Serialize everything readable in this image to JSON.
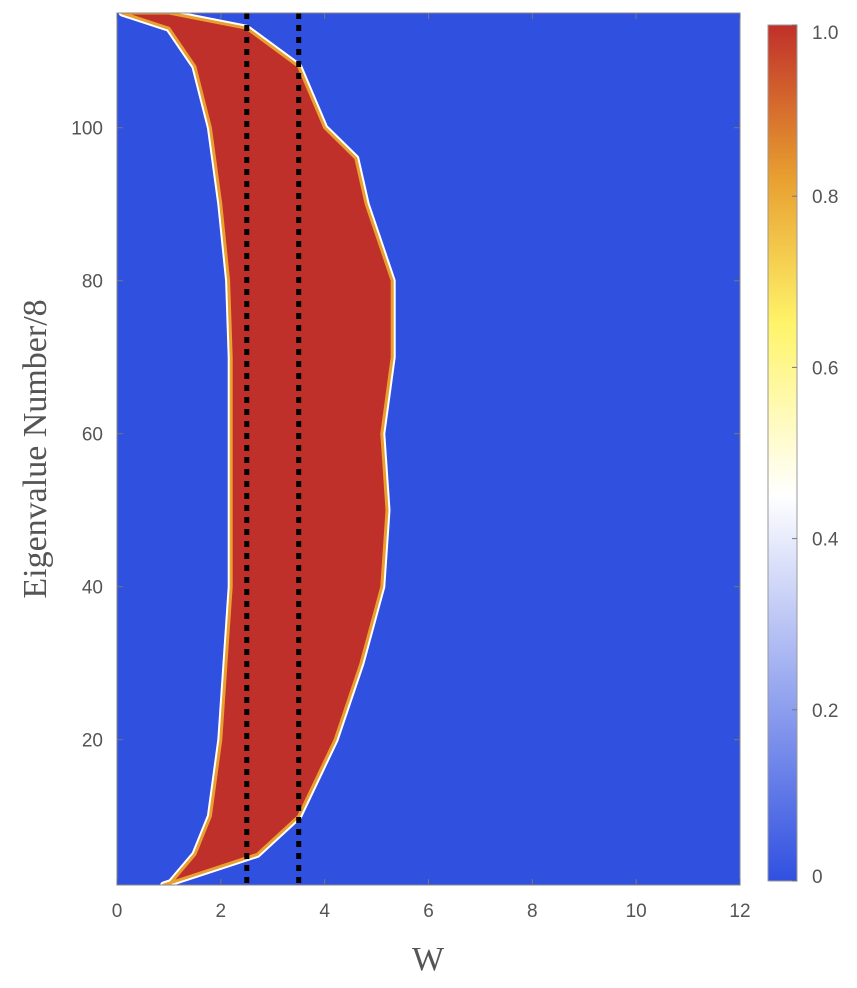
{
  "chart_data": {
    "type": "heatmap",
    "xlabel": "W",
    "ylabel": "Eigenvalue Number/8",
    "xlim": [
      0,
      12
    ],
    "ylim": [
      1,
      115
    ],
    "x_ticks": [
      "0",
      "2",
      "4",
      "6",
      "8",
      "10",
      "12"
    ],
    "y_ticks": [
      "20",
      "40",
      "60",
      "80",
      "100"
    ],
    "colorbar": {
      "range": [
        0,
        1
      ],
      "ticks": [
        "0",
        "0.2",
        "0.4",
        "0.6",
        "0.8",
        "1.0"
      ],
      "colors": [
        "#3050e0",
        "#ffffff",
        "#fff46a",
        "#e8a030",
        "#c0302a"
      ]
    },
    "background_value": 0,
    "high_region": {
      "value": 1,
      "description_points_left_edge": [
        [
          1,
          1.0
        ],
        [
          5,
          1.5
        ],
        [
          10,
          1.8
        ],
        [
          20,
          2.0
        ],
        [
          30,
          2.1
        ],
        [
          40,
          2.2
        ],
        [
          50,
          2.2
        ],
        [
          60,
          2.2
        ],
        [
          70,
          2.2
        ],
        [
          80,
          2.15
        ],
        [
          90,
          2.0
        ],
        [
          100,
          1.8
        ],
        [
          108,
          1.5
        ],
        [
          113,
          1.0
        ],
        [
          115,
          0.1
        ]
      ],
      "description_points_right_edge": [
        [
          1,
          0.9
        ],
        [
          5,
          2.7
        ],
        [
          10,
          3.5
        ],
        [
          20,
          4.2
        ],
        [
          30,
          4.7
        ],
        [
          40,
          5.1
        ],
        [
          50,
          5.2
        ],
        [
          60,
          5.1
        ],
        [
          70,
          5.3
        ],
        [
          80,
          5.3
        ],
        [
          90,
          4.8
        ],
        [
          96,
          4.6
        ],
        [
          100,
          4.0
        ],
        [
          108,
          3.5
        ],
        [
          113,
          2.5
        ],
        [
          115,
          1.0
        ]
      ]
    },
    "reference_lines": {
      "style": "dotted",
      "color": "#000000",
      "x": [
        2.5,
        3.5
      ]
    }
  }
}
